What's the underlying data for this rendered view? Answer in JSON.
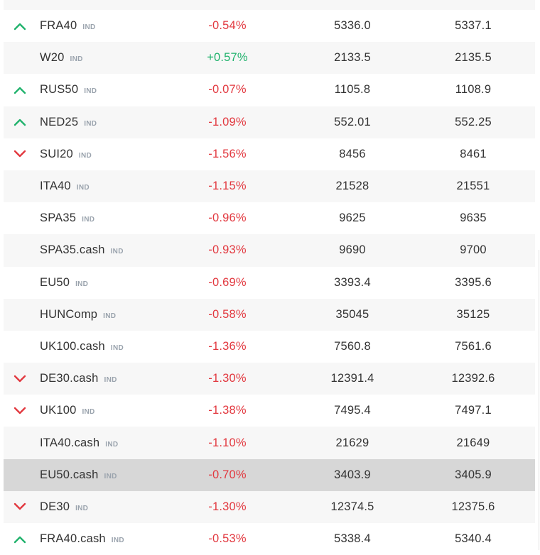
{
  "colors": {
    "negative": "#e2383f",
    "positive": "#20b26c",
    "up_arrow": "#20b26c",
    "down_arrow": "#e2383f",
    "selected_row": "#d7d7d7",
    "alt_row": "#f7f7f7"
  },
  "rows": [
    {
      "symbol": "FRA40",
      "tag": "IND",
      "change": "-0.54%",
      "bid": "5336.0",
      "ask": "5337.1",
      "trend": "up"
    },
    {
      "symbol": "W20",
      "tag": "IND",
      "change": "+0.57%",
      "bid": "2133.5",
      "ask": "2135.5",
      "trend": "none"
    },
    {
      "symbol": "RUS50",
      "tag": "IND",
      "change": "-0.07%",
      "bid": "1105.8",
      "ask": "1108.9",
      "trend": "up"
    },
    {
      "symbol": "NED25",
      "tag": "IND",
      "change": "-1.09%",
      "bid": "552.01",
      "ask": "552.25",
      "trend": "up"
    },
    {
      "symbol": "SUI20",
      "tag": "IND",
      "change": "-1.56%",
      "bid": "8456",
      "ask": "8461",
      "trend": "down"
    },
    {
      "symbol": "ITA40",
      "tag": "IND",
      "change": "-1.15%",
      "bid": "21528",
      "ask": "21551",
      "trend": "none"
    },
    {
      "symbol": "SPA35",
      "tag": "IND",
      "change": "-0.96%",
      "bid": "9625",
      "ask": "9635",
      "trend": "none"
    },
    {
      "symbol": "SPA35.cash",
      "tag": "IND",
      "change": "-0.93%",
      "bid": "9690",
      "ask": "9700",
      "trend": "none"
    },
    {
      "symbol": "EU50",
      "tag": "IND",
      "change": "-0.69%",
      "bid": "3393.4",
      "ask": "3395.6",
      "trend": "none"
    },
    {
      "symbol": "HUNComp",
      "tag": "IND",
      "change": "-0.58%",
      "bid": "35045",
      "ask": "35125",
      "trend": "none"
    },
    {
      "symbol": "UK100.cash",
      "tag": "IND",
      "change": "-1.36%",
      "bid": "7560.8",
      "ask": "7561.6",
      "trend": "none"
    },
    {
      "symbol": "DE30.cash",
      "tag": "IND",
      "change": "-1.30%",
      "bid": "12391.4",
      "ask": "12392.6",
      "trend": "down"
    },
    {
      "symbol": "UK100",
      "tag": "IND",
      "change": "-1.38%",
      "bid": "7495.4",
      "ask": "7497.1",
      "trend": "down"
    },
    {
      "symbol": "ITA40.cash",
      "tag": "IND",
      "change": "-1.10%",
      "bid": "21629",
      "ask": "21649",
      "trend": "none"
    },
    {
      "symbol": "EU50.cash",
      "tag": "IND",
      "change": "-0.70%",
      "bid": "3403.9",
      "ask": "3405.9",
      "trend": "none",
      "selected": true
    },
    {
      "symbol": "DE30",
      "tag": "IND",
      "change": "-1.30%",
      "bid": "12374.5",
      "ask": "12375.6",
      "trend": "down"
    },
    {
      "symbol": "FRA40.cash",
      "tag": "IND",
      "change": "-0.53%",
      "bid": "5338.4",
      "ask": "5340.4",
      "trend": "up"
    }
  ]
}
